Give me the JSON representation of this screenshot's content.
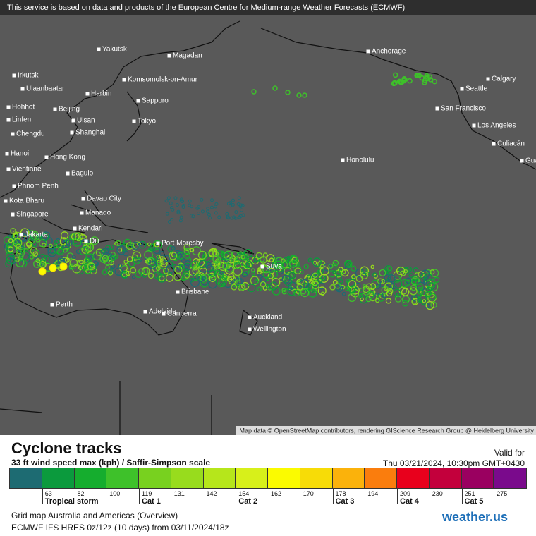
{
  "header": {
    "notice": "This service is based on data and products of the European Centre for Medium-range Weather Forecasts (ECMWF)"
  },
  "map": {
    "cities": [
      "Yakutsk",
      "Magadan",
      "Anchorage",
      "Irkutsk",
      "Ulaanbaatar",
      "Harbin",
      "Komsomolsk-on-Amur",
      "Calgary",
      "Seattle",
      "Sapporo",
      "Hohhot",
      "Beijing",
      "San Francisco",
      "Linfen",
      "Ulsan",
      "Tokyo",
      "Los Angeles",
      "Chengdu",
      "Shanghai",
      "Culiacán",
      "Hanoi",
      "Hong Kong",
      "Honolulu",
      "Guadalajara",
      "Vientiane",
      "Baguio",
      "Phnom Penh",
      "Kota Bharu",
      "Davao City",
      "Singapore",
      "Manado",
      "Kendari",
      "Jakarta",
      "Dili",
      "Port Moresby",
      "Suva",
      "Perth",
      "Brisbane",
      "Adelaide",
      "Canberra",
      "Auckland",
      "Wellington"
    ],
    "attribution": "Map data © OpenStreetMap contributors, rendering GIScience Research Group @ Heidelberg University"
  },
  "panel": {
    "title": "Cyclone tracks",
    "subtitle": "33 ft wind speed max (kph) / Saffir-Simpson scale",
    "valid_label": "Valid for",
    "valid_time": "Thu 03/21/2024, 10:30pm GMT+0430",
    "legend": {
      "colors": [
        "#1d6b72",
        "#0b9a3d",
        "#15ad2e",
        "#3ec12a",
        "#78d11f",
        "#98dc1d",
        "#b6e61b",
        "#d7f01a",
        "#fbfb00",
        "#f7dc07",
        "#fbb20b",
        "#fa7d0d",
        "#e8001c",
        "#c3003c",
        "#9a0060",
        "#7a0a8c"
      ],
      "thresholds": [
        63,
        82,
        100,
        119,
        131,
        142,
        154,
        162,
        170,
        178,
        194,
        209,
        230,
        251,
        275
      ],
      "categories": [
        "Tropical storm",
        "Cat 1",
        "Cat 2",
        "Cat 3",
        "Cat 4",
        "Cat 5"
      ]
    },
    "grid": "Grid map Australia and Americas (Overview)",
    "model": "ECMWF IFS HRES 0z/12z (10 days)  from  03/11/2024/18z",
    "brand": "weather.us"
  }
}
